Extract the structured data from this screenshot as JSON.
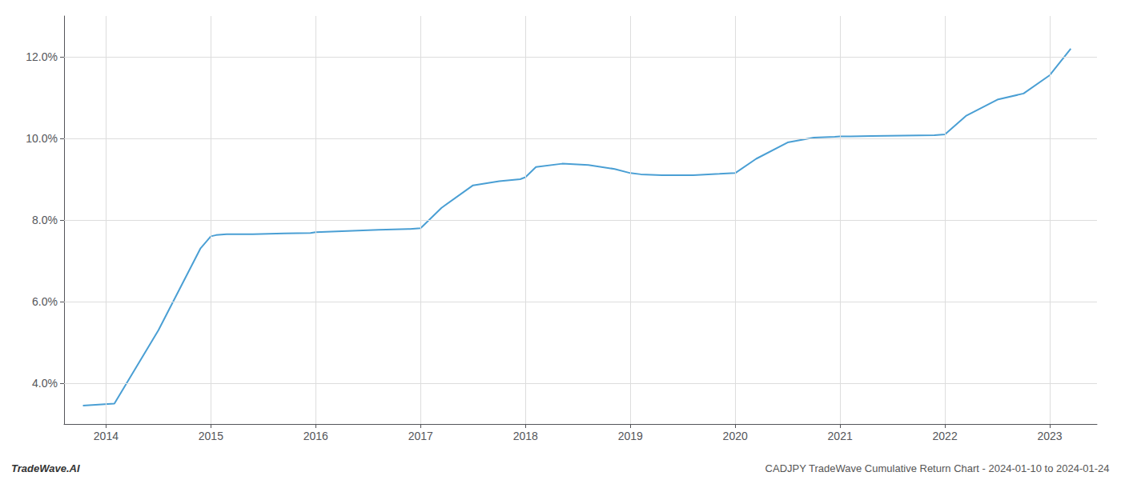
{
  "chart_data": {
    "type": "line",
    "x": [
      2013.78,
      2014.08,
      2014.5,
      2014.9,
      2015.0,
      2015.05,
      2015.15,
      2015.4,
      2015.7,
      2015.95,
      2016.0,
      2016.1,
      2016.3,
      2016.6,
      2016.9,
      2017.0,
      2017.2,
      2017.5,
      2017.75,
      2017.95,
      2018.0,
      2018.1,
      2018.35,
      2018.6,
      2018.85,
      2019.0,
      2019.1,
      2019.3,
      2019.6,
      2019.85,
      2020.0,
      2020.2,
      2020.5,
      2020.75,
      2020.95,
      2021.0,
      2021.1,
      2021.3,
      2021.6,
      2021.9,
      2022.0,
      2022.2,
      2022.5,
      2022.75,
      2023.0,
      2023.2
    ],
    "values": [
      3.45,
      3.5,
      5.3,
      7.3,
      7.6,
      7.63,
      7.65,
      7.65,
      7.67,
      7.68,
      7.7,
      7.71,
      7.73,
      7.76,
      7.78,
      7.8,
      8.3,
      8.85,
      8.95,
      9.0,
      9.05,
      9.3,
      9.38,
      9.35,
      9.25,
      9.15,
      9.12,
      9.1,
      9.1,
      9.13,
      9.15,
      9.5,
      9.9,
      10.02,
      10.04,
      10.05,
      10.05,
      10.06,
      10.07,
      10.08,
      10.1,
      10.55,
      10.95,
      11.1,
      11.55,
      12.2
    ],
    "color": "#4a9fd4",
    "xlim": [
      2013.6,
      2023.45
    ],
    "xticks": [
      2014,
      2015,
      2016,
      2017,
      2018,
      2019,
      2020,
      2021,
      2022,
      2023
    ],
    "ylim": [
      3.0,
      13.0
    ],
    "yticks": [
      {
        "value": 4.0,
        "label": "4.0%"
      },
      {
        "value": 6.0,
        "label": "6.0%"
      },
      {
        "value": 8.0,
        "label": "8.0%"
      },
      {
        "value": 10.0,
        "label": "10.0%"
      },
      {
        "value": 12.0,
        "label": "12.0%"
      }
    ],
    "grid": true,
    "annotations": [
      "TradeWave.AI",
      "CADJPY TradeWave Cumulative Return Chart - 2024-01-10 to 2024-01-24"
    ]
  }
}
